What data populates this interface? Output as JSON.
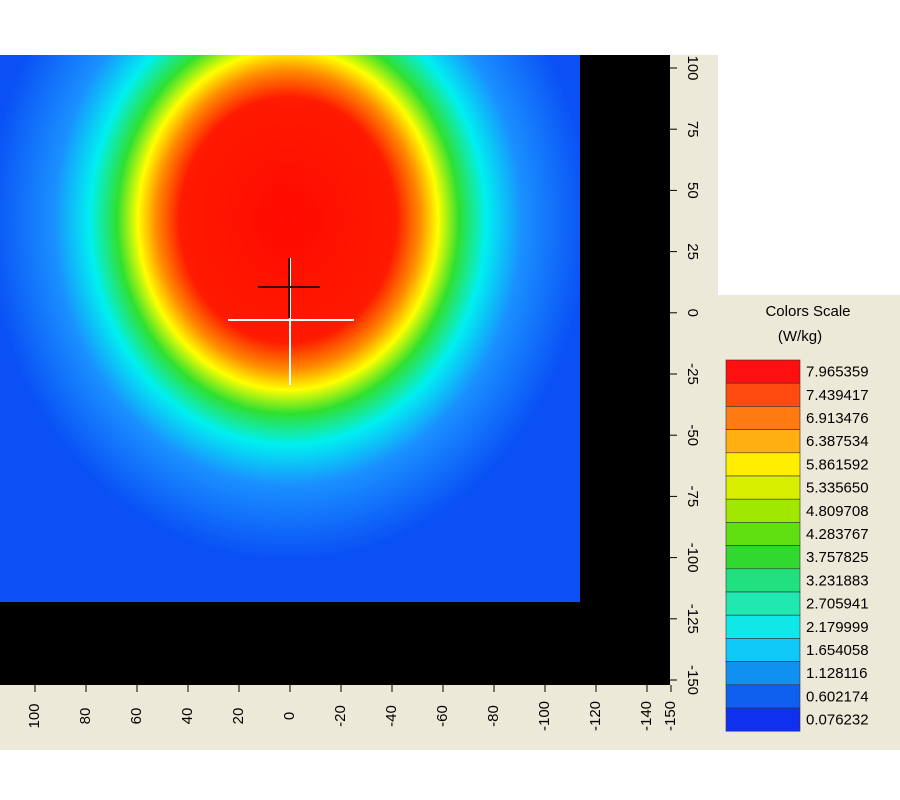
{
  "plot": {
    "x_ticks": [
      "100",
      "80",
      "60",
      "40",
      "20",
      "0",
      "-20",
      "-40",
      "-60",
      "-80",
      "-100",
      "-120",
      "-140",
      "-150"
    ],
    "y_ticks": [
      "100",
      "75",
      "50",
      "25",
      "0",
      "-25",
      "-50",
      "-75",
      "-100",
      "-125",
      "-150"
    ]
  },
  "legend": {
    "title": "Colors Scale",
    "unit": "(W/kg)",
    "entries": [
      {
        "label": "7.965359",
        "color": "#ff1010"
      },
      {
        "label": "7.439417",
        "color": "#ff4a10"
      },
      {
        "label": "6.913476",
        "color": "#ff7a10"
      },
      {
        "label": "6.387534",
        "color": "#ffb010"
      },
      {
        "label": "5.861592",
        "color": "#ffee00"
      },
      {
        "label": "5.335650",
        "color": "#d8f000"
      },
      {
        "label": "4.809708",
        "color": "#a0e800"
      },
      {
        "label": "4.283767",
        "color": "#60e010"
      },
      {
        "label": "3.757825",
        "color": "#30d830"
      },
      {
        "label": "3.231883",
        "color": "#20e080"
      },
      {
        "label": "2.705941",
        "color": "#20e8b0"
      },
      {
        "label": "2.179999",
        "color": "#10e8e8"
      },
      {
        "label": "1.654058",
        "color": "#10c8f8"
      },
      {
        "label": "1.128116",
        "color": "#1090f0"
      },
      {
        "label": "0.602174",
        "color": "#1060f0"
      },
      {
        "label": "0.076232",
        "color": "#1030f0"
      }
    ]
  }
}
